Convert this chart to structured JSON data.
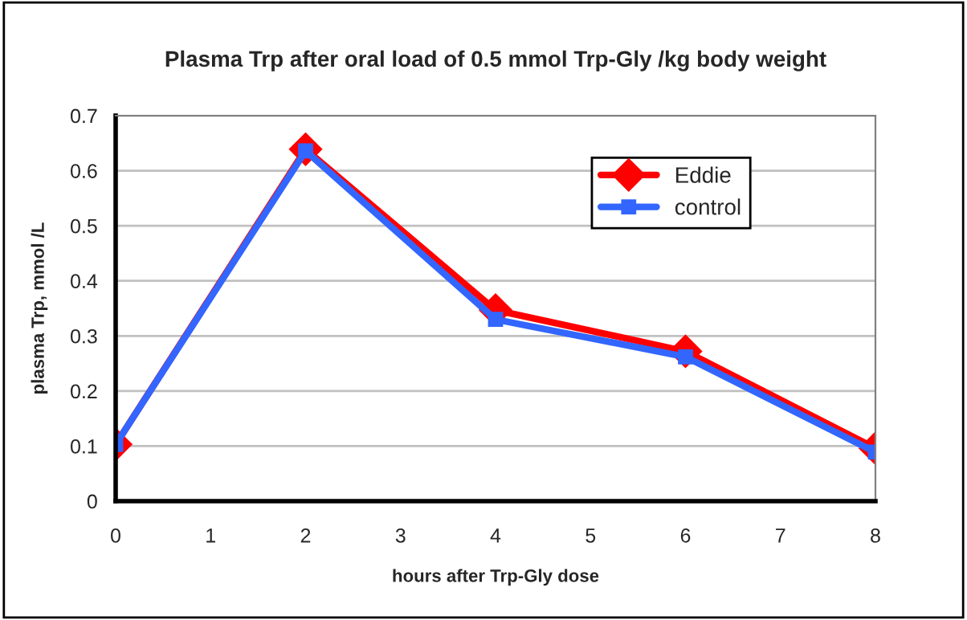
{
  "chart_data": {
    "type": "line",
    "title": "Plasma Trp after oral load of 0.5 mmol Trp-Gly /kg body weight",
    "xlabel": "hours after Trp-Gly dose",
    "ylabel": "plasma Trp, mmol /L",
    "x": [
      0,
      2,
      4,
      6,
      8
    ],
    "series": [
      {
        "name": "Eddie",
        "color": "#ff0000",
        "marker": "diamond",
        "values": [
          0.103,
          0.639,
          0.347,
          0.272,
          0.096
        ]
      },
      {
        "name": "control",
        "color": "#3366ff",
        "marker": "square",
        "values": [
          0.103,
          0.636,
          0.33,
          0.262,
          0.089
        ]
      }
    ],
    "xlim": [
      0,
      8
    ],
    "xticks": [
      0,
      1,
      2,
      3,
      4,
      5,
      6,
      7,
      8
    ],
    "ylim": [
      0,
      0.7
    ],
    "yticks": [
      0,
      0.1,
      0.2,
      0.3,
      0.4,
      0.5,
      0.6,
      0.7
    ],
    "grid": "y",
    "legend": "top right",
    "line_style": "solid"
  }
}
